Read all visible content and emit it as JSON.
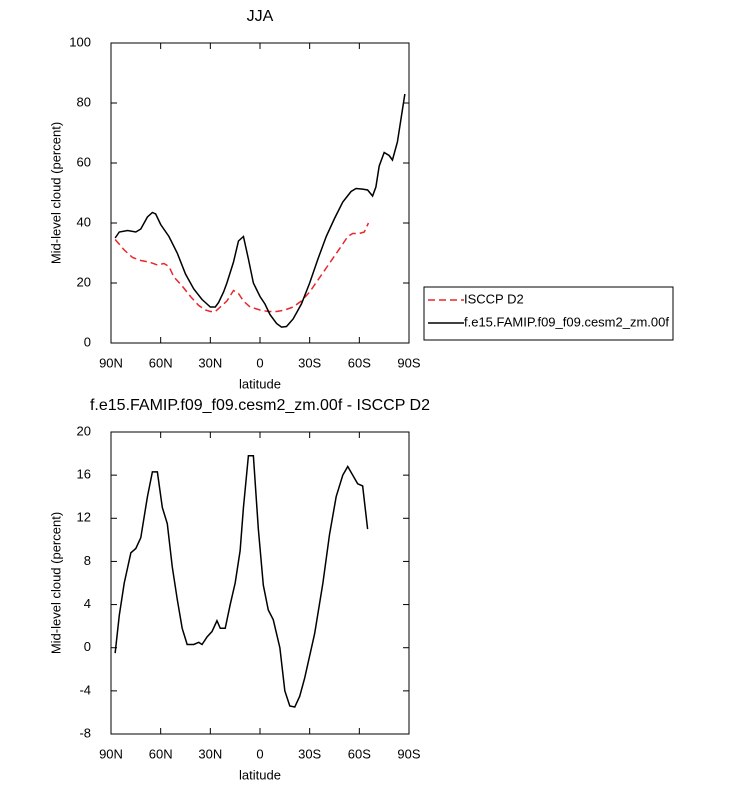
{
  "chart_data": [
    {
      "type": "line",
      "title": "JJA",
      "xlabel": "latitude",
      "ylabel": "Mid-level cloud (percent)",
      "xlim": [
        90,
        -90
      ],
      "xticks": [
        {
          "value": 90,
          "label": "90N"
        },
        {
          "value": 60,
          "label": "60N"
        },
        {
          "value": 30,
          "label": "30N"
        },
        0,
        {
          "value": -30,
          "label": "30S"
        },
        {
          "value": -60,
          "label": "60S"
        },
        {
          "value": -90,
          "label": "90S"
        }
      ],
      "ylim": [
        0,
        100
      ],
      "yticks": [
        0,
        20,
        40,
        60,
        80,
        100
      ],
      "legend": "right",
      "series": [
        {
          "name": "ISCCP D2",
          "color": "#e8262b",
          "linestyle": "dashed",
          "x": [
            87.5,
            82,
            77,
            72,
            67,
            62,
            58,
            55,
            52,
            47,
            42,
            37,
            33,
            30,
            27,
            23,
            20,
            16,
            13,
            10,
            6,
            0,
            -5,
            -10,
            -15,
            -20,
            -25,
            -30,
            -35,
            -40,
            -45,
            -50,
            -53,
            -56,
            -60,
            -63,
            -65.5
          ],
          "values": [
            34.5,
            31,
            28.5,
            27.5,
            27,
            26,
            26.5,
            25.5,
            22,
            19,
            15.5,
            12.5,
            11,
            10.5,
            10.5,
            12.5,
            14,
            17.5,
            16.5,
            14,
            12,
            11,
            10.5,
            10.5,
            11,
            12,
            14,
            17,
            21,
            25,
            29,
            33,
            35.5,
            36.5,
            36.5,
            37,
            40
          ]
        },
        {
          "name": "f.e15.FAMIP.f09_f09.cesm2_zm.00f",
          "color": "#000000",
          "linestyle": "solid",
          "x": [
            87.5,
            85,
            80,
            75,
            72,
            68,
            65,
            63,
            60,
            55,
            50,
            45,
            40,
            35,
            33,
            30,
            27,
            25,
            22,
            20,
            16,
            13,
            10,
            7,
            4,
            0,
            -3,
            -6,
            -10,
            -13,
            -16,
            -20,
            -25,
            -30,
            -35,
            -40,
            -45,
            -50,
            -55,
            -58,
            -62,
            -65,
            -68,
            -70,
            -72,
            -75,
            -78,
            -80,
            -83,
            -87.5
          ],
          "values": [
            35,
            37,
            37.5,
            37,
            38,
            42,
            43.5,
            43,
            39.5,
            35.5,
            30,
            23,
            18,
            14.5,
            13.5,
            12,
            12,
            13.5,
            17,
            20,
            27,
            34,
            35.5,
            28,
            20,
            15.5,
            13,
            9.5,
            6.5,
            5.3,
            5.5,
            8,
            13,
            20,
            28,
            35.5,
            41.5,
            47,
            50.5,
            51.5,
            51.3,
            51,
            49,
            52,
            59,
            63.5,
            62.5,
            61,
            67,
            83
          ]
        }
      ]
    },
    {
      "type": "line",
      "title": "f.e15.FAMIP.f09_f09.cesm2_zm.00f - ISCCP D2",
      "xlabel": "latitude",
      "ylabel": "Mid-level cloud (percent)",
      "xlim": [
        90,
        -90
      ],
      "xticks": [
        {
          "value": 90,
          "label": "90N"
        },
        {
          "value": 60,
          "label": "60N"
        },
        {
          "value": 30,
          "label": "30N"
        },
        0,
        {
          "value": -30,
          "label": "30S"
        },
        {
          "value": -60,
          "label": "60S"
        },
        {
          "value": -90,
          "label": "90S"
        }
      ],
      "ylim": [
        -8,
        20
      ],
      "yticks": [
        -8,
        -4,
        0,
        4,
        8,
        12,
        16,
        20
      ],
      "series": [
        {
          "color": "#000000",
          "linestyle": "solid",
          "x": [
            87.5,
            85,
            82,
            78,
            75,
            72,
            68,
            65,
            62,
            59,
            56,
            53,
            50,
            47,
            44,
            40,
            37,
            35,
            32,
            29,
            26,
            24,
            21,
            18,
            15,
            12,
            10,
            7,
            4,
            1,
            -2,
            -5,
            -8,
            -12,
            -15,
            -18,
            -21,
            -24,
            -27,
            -33,
            -38,
            -42,
            -46,
            -50,
            -53,
            -56,
            -59,
            -62,
            -65
          ],
          "values": [
            -0.5,
            3,
            6,
            8.8,
            9.2,
            10.2,
            14,
            16.3,
            16.3,
            13,
            11.5,
            7.5,
            4.5,
            1.8,
            0.3,
            0.3,
            0.5,
            0.3,
            1,
            1.5,
            2.5,
            1.8,
            1.8,
            4,
            6,
            9,
            13,
            17.8,
            17.8,
            11,
            5.8,
            3.5,
            2.6,
            0,
            -4,
            -5.4,
            -5.5,
            -4.5,
            -2.8,
            1.3,
            6,
            10.5,
            14,
            16,
            16.8,
            16,
            15.2,
            15,
            11
          ]
        }
      ]
    }
  ]
}
